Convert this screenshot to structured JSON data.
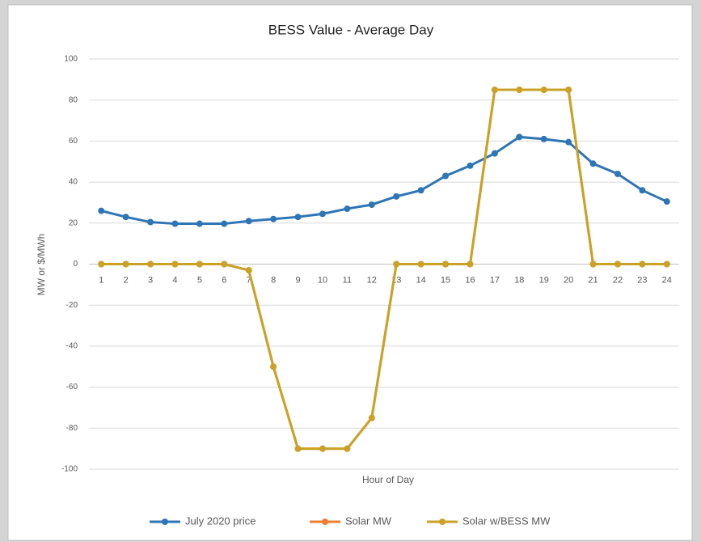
{
  "chart_data": {
    "type": "line",
    "title": "BESS Value - Average Day",
    "x_label": "Hour of Day",
    "y_label": "MW or $/MWh",
    "categories": [
      "1",
      "2",
      "3",
      "4",
      "5",
      "6",
      "7",
      "8",
      "9",
      "10",
      "11",
      "12",
      "13",
      "14",
      "15",
      "16",
      "17",
      "18",
      "19",
      "20",
      "21",
      "22",
      "23",
      "24"
    ],
    "series": [
      {
        "name": "July 2020 price",
        "color": "#2e75b6",
        "values": [
          26,
          23,
          20.5,
          19.7,
          19.7,
          19.7,
          21,
          22,
          23,
          24.5,
          27,
          29,
          33,
          36,
          43,
          48,
          54,
          62,
          61,
          59.5,
          49,
          44,
          36,
          30.5
        ]
      },
      {
        "name": "Solar MW",
        "color": "#ed7d31",
        "values": [
          0,
          0,
          0,
          0,
          0,
          0,
          -3,
          -50,
          -90,
          -90,
          -90,
          -75,
          0,
          0,
          0,
          0,
          85,
          85,
          85,
          85,
          0,
          0,
          0,
          0
        ]
      },
      {
        "name": "Solar w/BESS MW",
        "color": "#c9a227",
        "values": [
          0,
          0,
          0,
          0,
          0,
          0,
          -3,
          -50,
          -90,
          -90,
          -90,
          -75,
          0,
          0,
          0,
          0,
          85,
          85,
          85,
          85,
          0,
          0,
          0,
          0
        ]
      }
    ],
    "ylim": [
      -100,
      100
    ],
    "yticks": [
      -100,
      -80,
      -60,
      -40,
      -20,
      0,
      20,
      40,
      60,
      80,
      100
    ],
    "grid": true,
    "legend": "bottom"
  }
}
